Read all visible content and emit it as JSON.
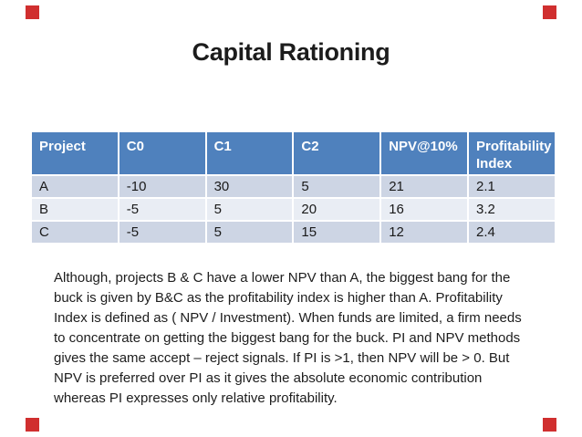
{
  "slide": {
    "title": "Capital Rationing"
  },
  "table": {
    "headers": [
      "Project",
      "C0",
      "C1",
      "C2",
      "NPV@10%",
      "Profitability Index"
    ],
    "rows": [
      [
        "A",
        "-10",
        "30",
        "5",
        "21",
        "2.1"
      ],
      [
        "B",
        "-5",
        "5",
        "20",
        "16",
        "3.2"
      ],
      [
        "C",
        "-5",
        "5",
        "15",
        "12",
        "2.4"
      ]
    ]
  },
  "note": {
    "text": "Although, projects B & C have a lower NPV than A, the biggest bang for the buck is given by B&C as the profitability index is higher than A. Profitability Index is defined as ( NPV / Investment). When funds are limited, a firm needs to concentrate on getting the biggest bang for the buck. PI and NPV methods gives the same accept – reject signals. If PI is >1, then NPV will be > 0. But NPV is preferred over PI as it gives the absolute economic contribution whereas PI expresses only relative profitability."
  },
  "colors": {
    "header_bg": "#4f81bd",
    "band_dark": "#cdd5e4",
    "band_light": "#e9edf4",
    "header_text": "#ffffff",
    "marker_red": "#d02f2f",
    "body_text": "#1d1d1d"
  }
}
